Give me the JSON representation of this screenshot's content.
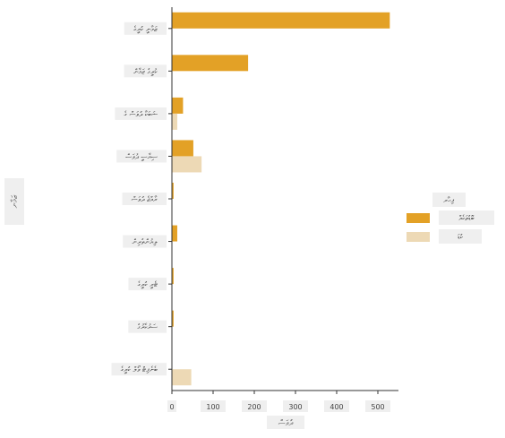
{
  "chart_data": {
    "type": "bar",
    "orientation": "horizontal",
    "xlabel": "ދުވަސް",
    "ylabel": "ޒަމާނ",
    "xlim": [
      0,
      550
    ],
    "x_ticks": [
      "0",
      "100",
      "200",
      "300",
      "400",
      "500"
    ],
    "grid": false,
    "legend": {
      "title": "ފިހާރ",
      "placement": "right"
    },
    "categories": [
      "ޒަމާނީ ކުރީގެ",
      "ކުރީގެ ޒަމާން",
      "ޝަބަކާ ދުވަސް ގެ",
      "ސިޔާސީ ދުވަސް",
      "ރާއްޖެ ދުވަސް",
      "ލިޔުންތެރިން",
      "ޓެރީ ކުރީގެ",
      "ސަރުކާރުގެ",
      "ބެނެފިޓް ވޯލް ކުރީގެ"
    ],
    "series": [
      {
        "name": "ބޮޑުތަކެއް",
        "color": "#e3a126",
        "values": [
          529,
          185,
          27,
          52,
          4,
          13,
          4,
          4,
          0
        ]
      },
      {
        "name": "ކުޑަ",
        "color": "#edd9b5",
        "values": [
          0,
          0,
          13,
          72,
          0,
          0,
          0,
          0,
          47
        ]
      }
    ]
  }
}
